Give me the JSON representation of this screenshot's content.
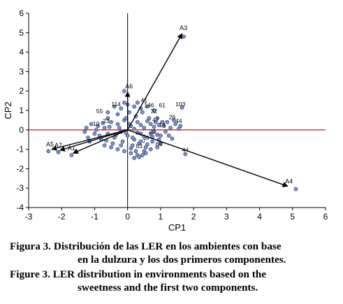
{
  "chart_data": {
    "type": "scatter",
    "title": "",
    "xlabel": "CP1",
    "ylabel": "CP2",
    "xlim": [
      -3,
      6
    ],
    "ylim": [
      -4,
      6
    ],
    "xticks": [
      "-3",
      "-2",
      "-1",
      "0",
      "1",
      "2",
      "3",
      "4",
      "5",
      "6"
    ],
    "yticks": [
      "-4",
      "-3",
      "-2",
      "-1",
      "0",
      "1",
      "2",
      "3",
      "4",
      "5",
      "6"
    ],
    "reference_line": {
      "y": 0,
      "color": "#e02020"
    },
    "point_color": "#7f95c8",
    "vectors": [
      {
        "name": "A3",
        "x": 1.65,
        "y": 4.95
      },
      {
        "name": "A4",
        "x": 4.85,
        "y": -2.9
      },
      {
        "name": "A6",
        "x": 0.0,
        "y": 1.95
      },
      {
        "name": "A5",
        "x": -2.3,
        "y": -1.0
      },
      {
        "name": "A7",
        "x": -2.05,
        "y": -1.05
      },
      {
        "name": "A1",
        "x": -1.65,
        "y": -1.2
      }
    ],
    "labeled_points": [
      {
        "label": "103",
        "x": 1.6,
        "y": 1.1
      },
      {
        "label": "26",
        "x": 1.35,
        "y": 0.45
      },
      {
        "label": "44",
        "x": 1.55,
        "y": 0.25
      },
      {
        "label": "61",
        "x": 1.05,
        "y": 1.05
      },
      {
        "label": "14",
        "x": 1.05,
        "y": 0.05
      },
      {
        "label": "68",
        "x": 0.95,
        "y": -0.95
      },
      {
        "label": "44",
        "x": 1.75,
        "y": -1.25
      },
      {
        "label": "55",
        "x": -0.85,
        "y": 0.75
      },
      {
        "label": "10",
        "x": -0.95,
        "y": 0.1
      },
      {
        "label": "23",
        "x": -0.65,
        "y": 0.25
      },
      {
        "label": "114",
        "x": -0.35,
        "y": 1.1
      },
      {
        "label": "146",
        "x": 0.65,
        "y": 1.05
      },
      {
        "label": "32",
        "x": 0.8,
        "y": 0.75
      },
      {
        "label": "47",
        "x": 0.85,
        "y": 0.3
      },
      {
        "label": "22",
        "x": 0.75,
        "y": -0.3
      },
      {
        "label": "63",
        "x": 0.35,
        "y": -1.05
      },
      {
        "label": "41",
        "x": 0.5,
        "y": 1.3
      },
      {
        "label": "7",
        "x": 0.5,
        "y": -0.8
      }
    ],
    "points": [
      [
        -0.9,
        0.2
      ],
      [
        -0.7,
        0.1
      ],
      [
        -0.6,
        -0.2
      ],
      [
        -0.5,
        0.4
      ],
      [
        -0.4,
        -0.4
      ],
      [
        -0.3,
        0.3
      ],
      [
        -0.2,
        -0.1
      ],
      [
        -0.1,
        0.5
      ],
      [
        0.0,
        -0.3
      ],
      [
        0.1,
        0.2
      ],
      [
        0.2,
        -0.5
      ],
      [
        0.3,
        0.4
      ],
      [
        0.4,
        -0.2
      ],
      [
        0.5,
        0.1
      ],
      [
        0.6,
        -0.4
      ],
      [
        0.7,
        0.3
      ],
      [
        0.8,
        -0.1
      ],
      [
        0.9,
        0.6
      ],
      [
        1.0,
        -0.3
      ],
      [
        1.1,
        0.2
      ],
      [
        -0.8,
        -0.5
      ],
      [
        -0.6,
        0.6
      ],
      [
        -0.45,
        -0.7
      ],
      [
        -0.3,
        0.8
      ],
      [
        -0.15,
        -0.6
      ],
      [
        0.05,
        0.9
      ],
      [
        0.15,
        -0.8
      ],
      [
        0.25,
        0.7
      ],
      [
        0.35,
        -0.7
      ],
      [
        0.45,
        0.9
      ],
      [
        0.55,
        -0.9
      ],
      [
        0.65,
        0.6
      ],
      [
        0.75,
        -0.6
      ],
      [
        0.85,
        0.4
      ],
      [
        0.95,
        -0.5
      ],
      [
        1.2,
        0.4
      ],
      [
        1.3,
        0.1
      ],
      [
        1.4,
        0.5
      ],
      [
        1.45,
        0.3
      ],
      [
        1.6,
        0.2
      ],
      [
        -1.0,
        -0.2
      ],
      [
        -0.95,
        0.0
      ],
      [
        -0.85,
        -0.3
      ],
      [
        -0.75,
        0.35
      ],
      [
        -0.65,
        -0.55
      ],
      [
        -0.55,
        0.15
      ],
      [
        -0.35,
        -0.25
      ],
      [
        -0.25,
        0.1
      ],
      [
        -0.05,
        -0.15
      ],
      [
        0.05,
        0.3
      ],
      [
        0.2,
        0.05
      ],
      [
        0.3,
        -0.15
      ],
      [
        0.4,
        0.25
      ],
      [
        0.5,
        -0.35
      ],
      [
        0.6,
        0.45
      ],
      [
        0.7,
        -0.2
      ],
      [
        0.8,
        0.15
      ],
      [
        0.9,
        -0.25
      ],
      [
        1.05,
        0.4
      ],
      [
        1.15,
        -0.1
      ],
      [
        -0.7,
        -0.8
      ],
      [
        -0.5,
        -0.9
      ],
      [
        -0.3,
        -1.0
      ],
      [
        -0.1,
        -1.1
      ],
      [
        0.1,
        -1.2
      ],
      [
        0.3,
        -1.3
      ],
      [
        0.5,
        -1.1
      ],
      [
        0.7,
        -1.0
      ],
      [
        0.9,
        -0.9
      ],
      [
        1.0,
        -0.7
      ],
      [
        -0.4,
        1.2
      ],
      [
        -0.2,
        1.1
      ],
      [
        0.0,
        1.3
      ],
      [
        0.2,
        1.2
      ],
      [
        0.4,
        1.1
      ],
      [
        0.6,
        1.2
      ],
      [
        0.8,
        1.0
      ],
      [
        -0.6,
        0.9
      ],
      [
        -0.1,
        1.4
      ],
      [
        0.3,
        1.4
      ],
      [
        -1.2,
        -0.4
      ],
      [
        -1.1,
        0.3
      ],
      [
        -1.3,
        -0.1
      ],
      [
        -1.25,
        0.1
      ],
      [
        -1.15,
        -0.6
      ],
      [
        -0.2,
        -0.8
      ],
      [
        0.1,
        -0.95
      ],
      [
        0.4,
        -0.6
      ],
      [
        0.6,
        -0.75
      ],
      [
        0.75,
        -0.35
      ],
      [
        0.35,
        -1.4
      ],
      [
        0.2,
        -1.45
      ],
      [
        0.45,
        -1.3
      ],
      [
        0.55,
        -1.2
      ],
      [
        0.25,
        -1.1
      ],
      [
        0.15,
        -0.4
      ],
      [
        -0.05,
        0.6
      ],
      [
        0.95,
        0.25
      ],
      [
        1.25,
        -0.3
      ],
      [
        1.35,
        -0.45
      ],
      [
        -0.1,
        2.0
      ],
      [
        1.65,
        1.15
      ],
      [
        1.55,
        0.05
      ],
      [
        1.75,
        -1.25
      ],
      [
        -2.4,
        -1.1
      ],
      [
        -2.1,
        -1.15
      ],
      [
        -1.7,
        -1.3
      ],
      [
        1.7,
        4.8
      ],
      [
        5.1,
        -3.05
      ]
    ]
  },
  "caption": {
    "es_lead": "Figura 3.",
    "es_line1": "Distribución de las LER en los ambientes con base",
    "es_line2": "en la dulzura y los dos primeros componentes.",
    "en_lead": "Figure 3.",
    "en_line1": "LER distribution in environments based on the",
    "en_line2": "sweetness and the first two components."
  }
}
